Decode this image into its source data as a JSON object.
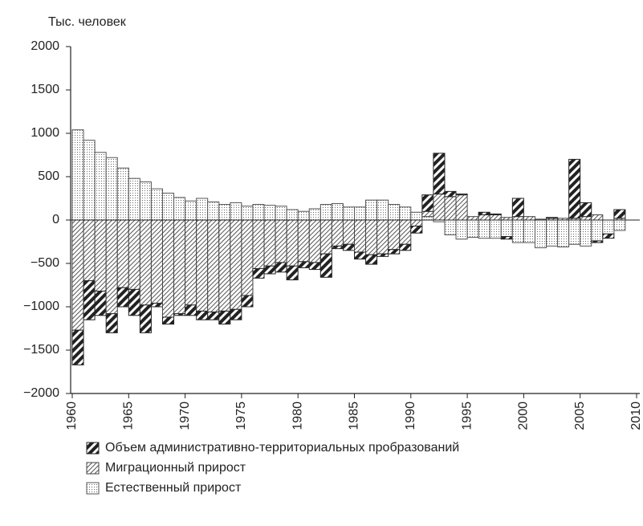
{
  "chart_data": {
    "type": "stacked-bar",
    "y_label": "Тыс. человек",
    "x": [
      1960,
      1961,
      1962,
      1963,
      1964,
      1965,
      1966,
      1967,
      1968,
      1969,
      1970,
      1971,
      1972,
      1973,
      1974,
      1975,
      1976,
      1977,
      1978,
      1979,
      1980,
      1981,
      1982,
      1983,
      1984,
      1985,
      1986,
      1987,
      1988,
      1989,
      1990,
      1991,
      1992,
      1993,
      1994,
      1995,
      1996,
      1997,
      1998,
      1999,
      2000,
      2001,
      2002,
      2003,
      2004,
      2005,
      2006,
      2007,
      2008
    ],
    "series": [
      {
        "name": "Объем административно-территориальных пробразований",
        "color": "#222222",
        "pattern": "bold-hatch",
        "values": [
          -400,
          -450,
          -280,
          -220,
          -220,
          -300,
          -320,
          -40,
          -80,
          -20,
          -120,
          -100,
          -90,
          -150,
          -120,
          -130,
          -110,
          -90,
          -110,
          -160,
          -70,
          -80,
          -270,
          -30,
          -70,
          -80,
          -110,
          -30,
          -50,
          -70,
          -80,
          190,
          470,
          60,
          10,
          0,
          30,
          10,
          -30,
          210,
          0,
          0,
          10,
          0,
          680,
          160,
          -20,
          -50,
          100
        ]
      },
      {
        "name": "Миграционный прирост",
        "color": "#444444",
        "pattern": "thin-hatch",
        "values": [
          -1270,
          -700,
          -820,
          -1080,
          -780,
          -800,
          -980,
          -960,
          -1120,
          -1080,
          -980,
          -1050,
          -1060,
          -1050,
          -1030,
          -870,
          -560,
          -530,
          -490,
          -530,
          -480,
          -490,
          -390,
          -300,
          -280,
          -370,
          -400,
          -390,
          -340,
          -280,
          -70,
          60,
          300,
          270,
          290,
          40,
          60,
          60,
          30,
          40,
          40,
          10,
          20,
          20,
          20,
          40,
          60,
          0,
          20
        ]
      },
      {
        "name": "Естественный прирост",
        "color": "#555555",
        "pattern": "dots",
        "values": [
          1040,
          920,
          780,
          720,
          600,
          480,
          440,
          360,
          310,
          260,
          220,
          250,
          210,
          180,
          200,
          160,
          180,
          170,
          160,
          120,
          100,
          130,
          180,
          190,
          150,
          150,
          230,
          230,
          180,
          150,
          90,
          40,
          -20,
          -170,
          -220,
          -200,
          -210,
          -210,
          -190,
          -260,
          -260,
          -320,
          -300,
          -310,
          -280,
          -300,
          -240,
          -160,
          -120
        ]
      }
    ],
    "xlim": [
      1960,
      2010
    ],
    "xticks": [
      1960,
      1965,
      1970,
      1975,
      1980,
      1985,
      1990,
      1995,
      2000,
      2005,
      2010
    ],
    "ylim": [
      -2000,
      2000
    ],
    "yticks": [
      {
        "value": -2000,
        "label": "−2000"
      },
      {
        "value": -1500,
        "label": "−1500"
      },
      {
        "value": -1000,
        "label": "−1000"
      },
      {
        "value": -500,
        "label": "−500"
      },
      0,
      500,
      1000,
      1500,
      2000
    ]
  }
}
